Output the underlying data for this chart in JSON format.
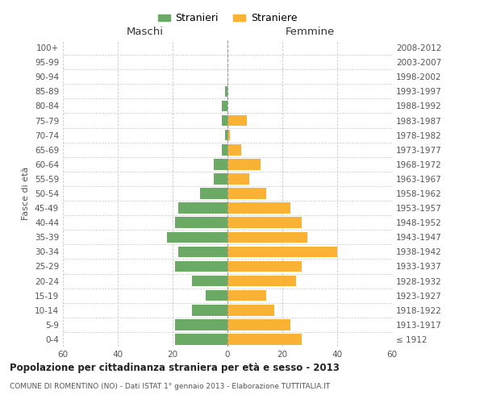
{
  "age_groups": [
    "0-4",
    "5-9",
    "10-14",
    "15-19",
    "20-24",
    "25-29",
    "30-34",
    "35-39",
    "40-44",
    "45-49",
    "50-54",
    "55-59",
    "60-64",
    "65-69",
    "70-74",
    "75-79",
    "80-84",
    "85-89",
    "90-94",
    "95-99",
    "100+"
  ],
  "birth_years": [
    "2008-2012",
    "2003-2007",
    "1998-2002",
    "1993-1997",
    "1988-1992",
    "1983-1987",
    "1978-1982",
    "1973-1977",
    "1968-1972",
    "1963-1967",
    "1958-1962",
    "1953-1957",
    "1948-1952",
    "1943-1947",
    "1938-1942",
    "1933-1937",
    "1928-1932",
    "1923-1927",
    "1918-1922",
    "1913-1917",
    "≤ 1912"
  ],
  "maschi": [
    19,
    19,
    13,
    8,
    13,
    19,
    18,
    22,
    19,
    18,
    10,
    5,
    5,
    2,
    1,
    2,
    2,
    1,
    0,
    0,
    0
  ],
  "femmine": [
    27,
    23,
    17,
    14,
    25,
    27,
    40,
    29,
    27,
    23,
    14,
    8,
    12,
    5,
    1,
    7,
    0,
    0,
    0,
    0,
    0
  ],
  "male_color": "#6aaa64",
  "female_color": "#f9b233",
  "legend_male": "Stranieri",
  "legend_female": "Straniere",
  "title_main": "Popolazione per cittadinanza straniera per età e sesso - 2013",
  "title_sub": "COMUNE DI ROMENTINO (NO) - Dati ISTAT 1° gennaio 2013 - Elaborazione TUTTITALIA.IT",
  "xlabel_left": "Maschi",
  "xlabel_right": "Femmine",
  "ylabel_left": "Fasce di età",
  "xlim": 60,
  "background_color": "#ffffff",
  "grid_color": "#cccccc"
}
